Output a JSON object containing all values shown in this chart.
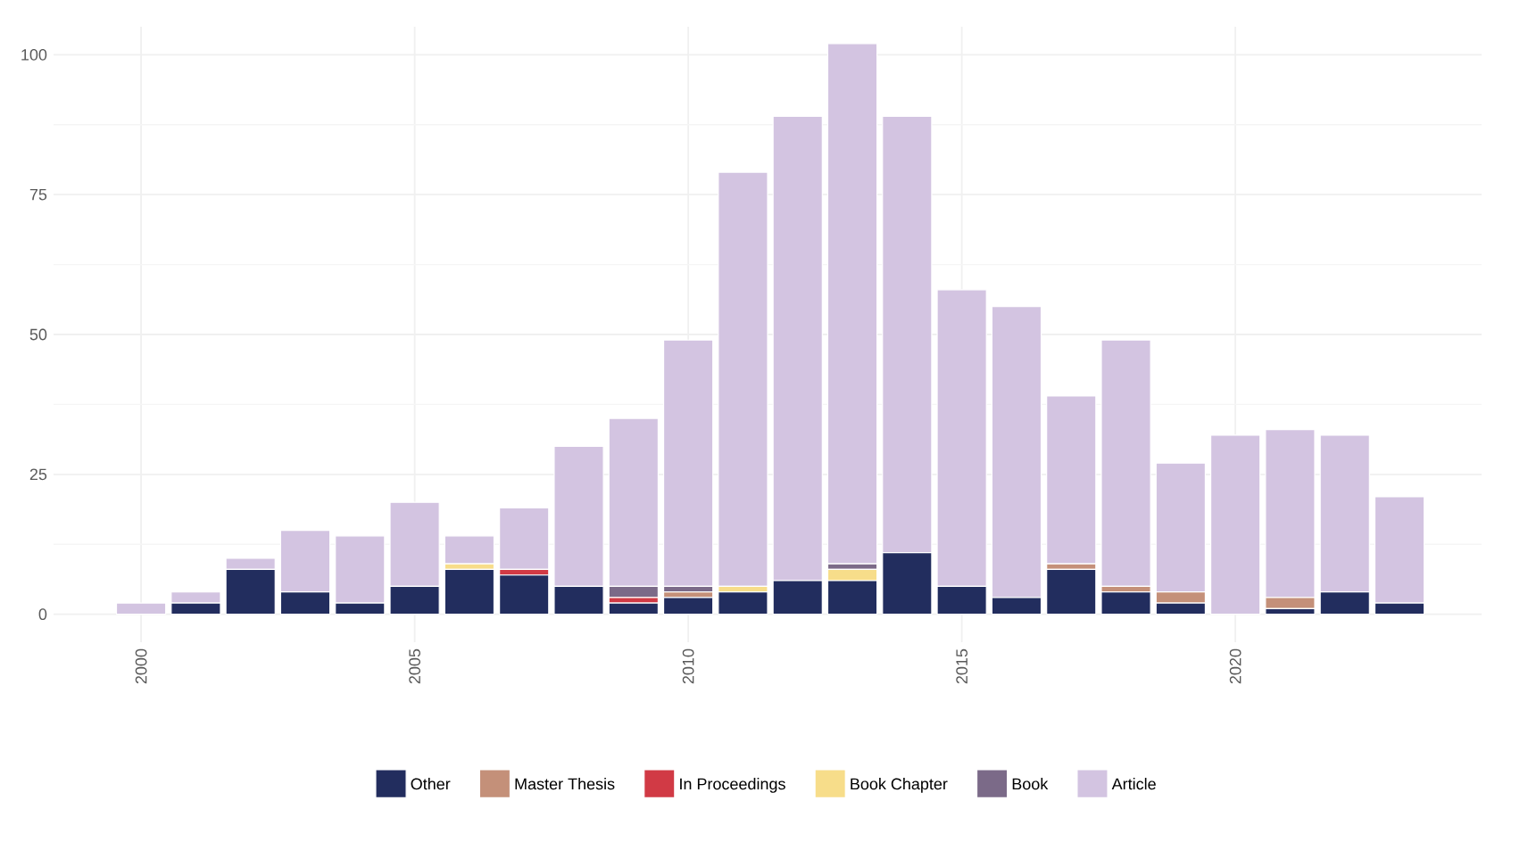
{
  "chart_data": {
    "type": "bar",
    "stacked": true,
    "x": [
      2000,
      2001,
      2002,
      2003,
      2004,
      2005,
      2006,
      2007,
      2008,
      2009,
      2010,
      2011,
      2012,
      2013,
      2014,
      2015,
      2016,
      2017,
      2018,
      2019,
      2020,
      2021,
      2022,
      2023
    ],
    "series": [
      {
        "name": "Other",
        "color": "#222d5e",
        "values": [
          0,
          2,
          8,
          4,
          2,
          5,
          8,
          7,
          5,
          2,
          3,
          4,
          6,
          6,
          11,
          5,
          3,
          8,
          4,
          2,
          0,
          1,
          4,
          2
        ]
      },
      {
        "name": "Master Thesis",
        "color": "#c49079",
        "values": [
          0,
          0,
          0,
          0,
          0,
          0,
          0,
          0,
          0,
          0,
          1,
          0,
          0,
          0,
          0,
          0,
          0,
          1,
          1,
          2,
          0,
          2,
          0,
          0
        ]
      },
      {
        "name": "In Proceedings",
        "color": "#d13a45",
        "values": [
          0,
          0,
          0,
          0,
          0,
          0,
          0,
          1,
          0,
          1,
          0,
          0,
          0,
          0,
          0,
          0,
          0,
          0,
          0,
          0,
          0,
          0,
          0,
          0
        ]
      },
      {
        "name": "Book Chapter",
        "color": "#f7dd8a",
        "values": [
          0,
          0,
          0,
          0,
          0,
          0,
          1,
          0,
          0,
          0,
          0,
          1,
          0,
          2,
          0,
          0,
          0,
          0,
          0,
          0,
          0,
          0,
          0,
          0
        ]
      },
      {
        "name": "Book",
        "color": "#7b6a88",
        "values": [
          0,
          0,
          0,
          0,
          0,
          0,
          0,
          0,
          0,
          2,
          1,
          0,
          0,
          1,
          0,
          0,
          0,
          0,
          0,
          0,
          0,
          0,
          0,
          0
        ]
      },
      {
        "name": "Article",
        "color": "#d3c4e1",
        "values": [
          2,
          2,
          2,
          11,
          12,
          15,
          5,
          11,
          25,
          30,
          44,
          74,
          83,
          93,
          78,
          53,
          52,
          30,
          44,
          23,
          32,
          30,
          28,
          19
        ]
      }
    ],
    "xlim": [
      1998.4,
      2024.5
    ],
    "xticks": [
      2000,
      2005,
      2010,
      2015,
      2020
    ],
    "ylim": [
      -5,
      105
    ],
    "yticks": [
      0,
      25,
      50,
      75,
      100
    ],
    "grid": true,
    "legend": "bottom"
  }
}
